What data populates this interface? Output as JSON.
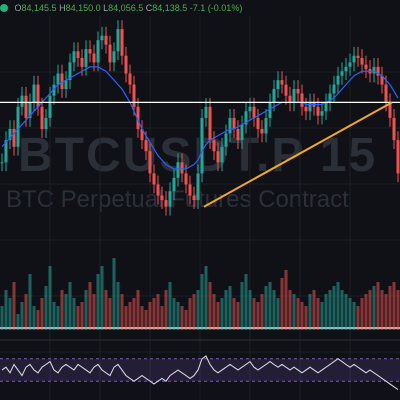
{
  "header": {
    "status_color": "#21b07a",
    "open_label": "O",
    "open_value": "84,145.5",
    "high_label": "H",
    "high_value": "84,150.0",
    "low_label": "L",
    "low_value": "84,056.5",
    "close_label": "C",
    "close_value": "84,138.5",
    "change": "-7.1 (-0.01%)"
  },
  "watermark": {
    "symbol": "BTCUSDT.P 15",
    "description": "BTC Perpetual Futures Contract"
  },
  "colors": {
    "up": "#26a69a",
    "down": "#ef5350",
    "moving_average": "#2962ff",
    "trendline": "#f5a623",
    "horizontal_level": "#ffffff",
    "oscillator": "#d1d4dc",
    "oscillator_band": "#7e57c2"
  },
  "chart_data": {
    "type": "line",
    "price": {
      "x": [
        0,
        4,
        8,
        12,
        16,
        20,
        24,
        28,
        32,
        36,
        40,
        44,
        48,
        52,
        56,
        60,
        64,
        68,
        72,
        76,
        80,
        84,
        88,
        92,
        96,
        100,
        104,
        108,
        112,
        116,
        120,
        124,
        128,
        132,
        136,
        140,
        144,
        148,
        152,
        156,
        160,
        164,
        168,
        172,
        176,
        180,
        184,
        188,
        192,
        196,
        200,
        204,
        208,
        212,
        216,
        220,
        224,
        228,
        232,
        236,
        240,
        244,
        248,
        252,
        256,
        260,
        264,
        268,
        272,
        276,
        280,
        284,
        288,
        292,
        296,
        300,
        304,
        308,
        312,
        316,
        320,
        324,
        328,
        332,
        336,
        340,
        344,
        348,
        352,
        356,
        360,
        364,
        368,
        372,
        376,
        380,
        384,
        388,
        392,
        396
      ],
      "y": [
        0.35,
        0.45,
        0.5,
        0.42,
        0.6,
        0.65,
        0.55,
        0.62,
        0.7,
        0.6,
        0.5,
        0.55,
        0.65,
        0.7,
        0.75,
        0.68,
        0.72,
        0.8,
        0.85,
        0.82,
        0.78,
        0.86,
        0.84,
        0.8,
        0.9,
        0.92,
        0.88,
        0.8,
        0.85,
        0.95,
        0.83,
        0.75,
        0.7,
        0.6,
        0.5,
        0.45,
        0.4,
        0.3,
        0.25,
        0.2,
        0.18,
        0.15,
        0.22,
        0.28,
        0.35,
        0.3,
        0.25,
        0.2,
        0.18,
        0.3,
        0.55,
        0.6,
        0.45,
        0.4,
        0.35,
        0.42,
        0.48,
        0.55,
        0.5,
        0.45,
        0.52,
        0.58,
        0.6,
        0.55,
        0.5,
        0.48,
        0.55,
        0.62,
        0.68,
        0.72,
        0.7,
        0.65,
        0.62,
        0.68,
        0.66,
        0.6,
        0.58,
        0.62,
        0.6,
        0.56,
        0.58,
        0.62,
        0.66,
        0.7,
        0.74,
        0.76,
        0.78,
        0.8,
        0.83,
        0.82,
        0.79,
        0.77,
        0.75,
        0.78,
        0.74,
        0.7,
        0.62,
        0.55,
        0.45,
        0.3
      ],
      "ylim": [
        0,
        1
      ]
    },
    "moving_average": {
      "y": [
        0.42,
        0.44,
        0.46,
        0.48,
        0.5,
        0.52,
        0.54,
        0.56,
        0.58,
        0.6,
        0.62,
        0.64,
        0.66,
        0.68,
        0.7,
        0.71,
        0.72,
        0.73,
        0.74,
        0.75,
        0.76,
        0.77,
        0.78,
        0.78,
        0.78,
        0.77,
        0.76,
        0.74,
        0.72,
        0.7,
        0.68,
        0.65,
        0.62,
        0.58,
        0.54,
        0.5,
        0.47,
        0.44,
        0.41,
        0.38,
        0.36,
        0.34,
        0.33,
        0.32,
        0.32,
        0.32,
        0.32,
        0.33,
        0.34,
        0.36,
        0.4,
        0.43,
        0.45,
        0.46,
        0.47,
        0.48,
        0.49,
        0.5,
        0.5,
        0.51,
        0.52,
        0.53,
        0.54,
        0.55,
        0.56,
        0.57,
        0.58,
        0.59,
        0.6,
        0.61,
        0.62,
        0.62,
        0.62,
        0.62,
        0.62,
        0.62,
        0.61,
        0.61,
        0.61,
        0.61,
        0.61,
        0.62,
        0.63,
        0.64,
        0.66,
        0.68,
        0.7,
        0.72,
        0.74,
        0.75,
        0.76,
        0.76,
        0.76,
        0.76,
        0.75,
        0.74,
        0.72,
        0.7,
        0.67,
        0.64
      ]
    },
    "horizontal_level": 0.62,
    "trendline": {
      "x1": 204,
      "y1": 0.15,
      "x2": 392,
      "y2": 0.62
    },
    "volume": [
      0.3,
      0.5,
      0.4,
      0.6,
      0.2,
      0.35,
      0.45,
      0.7,
      0.3,
      0.25,
      0.4,
      0.55,
      0.8,
      0.35,
      0.3,
      0.5,
      0.45,
      0.6,
      0.4,
      0.3,
      0.35,
      0.5,
      0.6,
      0.45,
      0.7,
      0.8,
      0.5,
      0.4,
      0.9,
      0.6,
      0.45,
      0.3,
      0.35,
      0.4,
      0.5,
      0.3,
      0.25,
      0.35,
      0.4,
      0.45,
      0.3,
      0.5,
      0.6,
      0.4,
      0.35,
      0.3,
      0.25,
      0.4,
      0.45,
      0.5,
      0.7,
      0.8,
      0.6,
      0.45,
      0.35,
      0.4,
      0.5,
      0.55,
      0.4,
      0.35,
      0.6,
      0.7,
      0.5,
      0.4,
      0.35,
      0.45,
      0.55,
      0.6,
      0.5,
      0.4,
      0.65,
      0.75,
      0.5,
      0.45,
      0.4,
      0.35,
      0.3,
      0.45,
      0.5,
      0.4,
      0.35,
      0.45,
      0.5,
      0.55,
      0.6,
      0.5,
      0.45,
      0.4,
      0.35,
      0.3,
      0.4,
      0.45,
      0.5,
      0.55,
      0.6,
      0.5,
      0.45,
      0.55,
      0.6,
      0.5
    ],
    "oscillator": [
      0.5,
      0.55,
      0.45,
      0.6,
      0.5,
      0.4,
      0.55,
      0.6,
      0.5,
      0.45,
      0.55,
      0.6,
      0.65,
      0.5,
      0.45,
      0.55,
      0.6,
      0.55,
      0.5,
      0.6,
      0.55,
      0.5,
      0.45,
      0.55,
      0.6,
      0.5,
      0.45,
      0.4,
      0.55,
      0.6,
      0.5,
      0.4,
      0.35,
      0.3,
      0.35,
      0.4,
      0.35,
      0.3,
      0.25,
      0.3,
      0.35,
      0.3,
      0.4,
      0.45,
      0.5,
      0.45,
      0.4,
      0.35,
      0.4,
      0.5,
      0.7,
      0.75,
      0.6,
      0.5,
      0.45,
      0.5,
      0.55,
      0.6,
      0.55,
      0.5,
      0.55,
      0.6,
      0.65,
      0.55,
      0.5,
      0.55,
      0.6,
      0.65,
      0.6,
      0.55,
      0.6,
      0.55,
      0.5,
      0.55,
      0.5,
      0.45,
      0.5,
      0.55,
      0.5,
      0.45,
      0.5,
      0.55,
      0.6,
      0.65,
      0.7,
      0.65,
      0.6,
      0.55,
      0.6,
      0.55,
      0.5,
      0.45,
      0.5,
      0.45,
      0.4,
      0.35,
      0.3,
      0.25,
      0.2,
      0.15
    ],
    "oscillator_bands": [
      0.3,
      0.7
    ],
    "grid": true
  }
}
